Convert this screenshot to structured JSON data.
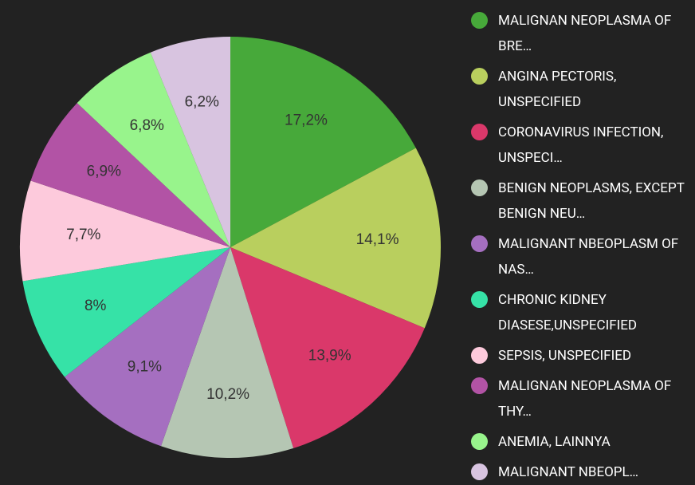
{
  "chart_data": {
    "type": "pie",
    "categories": [
      "MALIGNAN NEOPLASMA OF BRE…",
      "ANGINA PECTORIS, UNSPECIFIED",
      "CORONAVIRUS INFECTION, UNSPECI…",
      "BENIGN NEOPLASMS, EXCEPT BENIGN NEU…",
      "MALIGNANT NBEOPLASM OF NAS…",
      "CHRONIC KIDNEY DIASESE,UNSPECIFIED",
      "SEPSIS, UNSPECIFIED",
      "MALIGNAN NEOPLASMA OF THY…",
      "ANEMIA, LAINNYA",
      "MALIGNANT NBEOPL…"
    ],
    "values": [
      17.2,
      14.1,
      13.9,
      10.2,
      9.1,
      8,
      7.7,
      6.9,
      6.8,
      6.2
    ],
    "value_labels": [
      "17,2%",
      "14,1%",
      "13,9%",
      "10,2%",
      "9,1%",
      "8%",
      "7,7%",
      "6,9%",
      "6,8%",
      "6,2%"
    ],
    "colors": [
      "#47a93a",
      "#b9cf5e",
      "#da386a",
      "#b5c6b3",
      "#a56fc0",
      "#36e2a7",
      "#fdcadc",
      "#b253a5",
      "#98f48c",
      "#d8c4e0"
    ],
    "legend": "right"
  }
}
